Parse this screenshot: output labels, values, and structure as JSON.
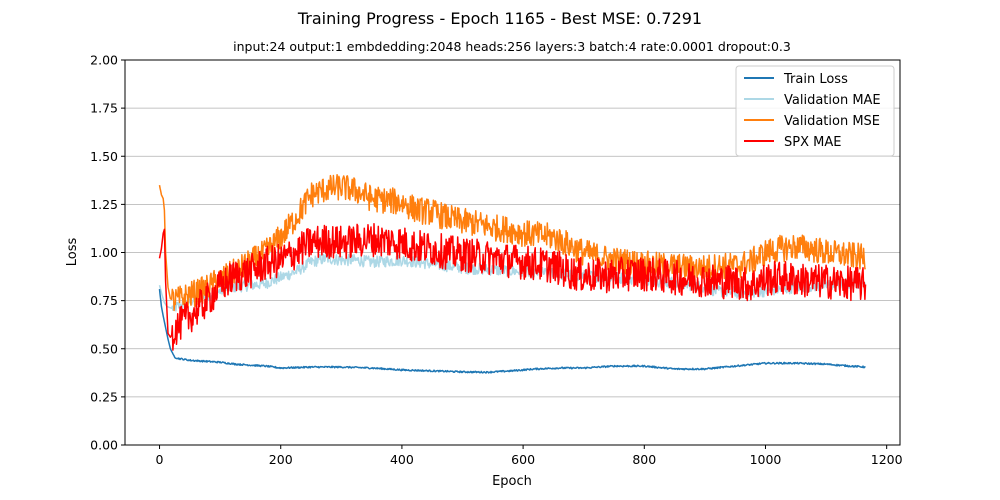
{
  "chart_data": {
    "type": "line",
    "title": "Training Progress - Epoch 1165 - Best MSE: 0.7291",
    "subtitle": "input:24 output:1 embdedding:2048 heads:256 layers:3 batch:4 rate:0.0001 dropout:0.3",
    "xlabel": "Epoch",
    "ylabel": "Loss",
    "xlim": [
      -57,
      1222
    ],
    "ylim": [
      0,
      2
    ],
    "xticks": [
      0,
      200,
      400,
      600,
      800,
      1000,
      1200
    ],
    "yticks": [
      0.0,
      0.25,
      0.5,
      0.75,
      1.0,
      1.25,
      1.5,
      1.75,
      2.0
    ],
    "ytick_labels": [
      "0.00",
      "0.25",
      "0.50",
      "0.75",
      "1.00",
      "1.25",
      "1.50",
      "1.75",
      "2.00"
    ],
    "grid": "y-axis horizontal lines",
    "legend_position": "top-right",
    "series": [
      {
        "name": "Train Loss",
        "color": "#1f77b4",
        "points": [
          [
            0,
            0.81
          ],
          [
            3,
            0.72
          ],
          [
            6,
            0.67
          ],
          [
            10,
            0.61
          ],
          [
            14,
            0.55
          ],
          [
            18,
            0.5
          ],
          [
            22,
            0.47
          ],
          [
            26,
            0.455
          ],
          [
            30,
            0.45
          ],
          [
            40,
            0.445
          ],
          [
            50,
            0.44
          ],
          [
            75,
            0.435
          ],
          [
            100,
            0.43
          ],
          [
            125,
            0.42
          ],
          [
            150,
            0.415
          ],
          [
            175,
            0.41
          ],
          [
            200,
            0.4
          ],
          [
            250,
            0.405
          ],
          [
            300,
            0.405
          ],
          [
            350,
            0.4
          ],
          [
            400,
            0.39
          ],
          [
            450,
            0.385
          ],
          [
            500,
            0.38
          ],
          [
            540,
            0.378
          ],
          [
            580,
            0.385
          ],
          [
            620,
            0.395
          ],
          [
            660,
            0.4
          ],
          [
            700,
            0.4
          ],
          [
            750,
            0.41
          ],
          [
            800,
            0.41
          ],
          [
            850,
            0.395
          ],
          [
            900,
            0.395
          ],
          [
            950,
            0.41
          ],
          [
            1000,
            0.425
          ],
          [
            1050,
            0.425
          ],
          [
            1100,
            0.42
          ],
          [
            1140,
            0.41
          ],
          [
            1165,
            0.405
          ]
        ]
      },
      {
        "name": "Validation MAE",
        "color": "#add8e6",
        "points": [
          [
            0,
            0.83
          ],
          [
            4,
            0.78
          ],
          [
            8,
            0.74
          ],
          [
            12,
            0.72
          ],
          [
            20,
            0.71
          ],
          [
            40,
            0.73
          ],
          [
            60,
            0.76
          ],
          [
            80,
            0.78
          ],
          [
            100,
            0.8
          ],
          [
            120,
            0.82
          ],
          [
            150,
            0.83
          ],
          [
            175,
            0.84
          ],
          [
            200,
            0.87
          ],
          [
            225,
            0.9
          ],
          [
            250,
            0.95
          ],
          [
            275,
            0.97
          ],
          [
            300,
            0.96
          ],
          [
            325,
            0.96
          ],
          [
            350,
            0.95
          ],
          [
            400,
            0.96
          ],
          [
            450,
            0.94
          ],
          [
            500,
            0.92
          ],
          [
            550,
            0.91
          ],
          [
            600,
            0.9
          ],
          [
            650,
            0.89
          ],
          [
            700,
            0.88
          ],
          [
            750,
            0.87
          ],
          [
            800,
            0.86
          ],
          [
            850,
            0.84
          ],
          [
            880,
            0.83
          ],
          [
            920,
            0.8
          ],
          [
            960,
            0.79
          ],
          [
            1000,
            0.8
          ],
          [
            1050,
            0.82
          ],
          [
            1100,
            0.83
          ],
          [
            1165,
            0.84
          ]
        ]
      },
      {
        "name": "Validation MSE",
        "color": "#ff7f0e",
        "points": [
          [
            0,
            1.35
          ],
          [
            3,
            1.3
          ],
          [
            6,
            1.28
          ],
          [
            8,
            1.22
          ],
          [
            10,
            1.0
          ],
          [
            14,
            0.82
          ],
          [
            18,
            0.76
          ],
          [
            25,
            0.75
          ],
          [
            35,
            0.76
          ],
          [
            50,
            0.78
          ],
          [
            75,
            0.81
          ],
          [
            100,
            0.86
          ],
          [
            125,
            0.9
          ],
          [
            150,
            0.95
          ],
          [
            175,
            1.0
          ],
          [
            200,
            1.08
          ],
          [
            225,
            1.18
          ],
          [
            250,
            1.3
          ],
          [
            275,
            1.33
          ],
          [
            300,
            1.34
          ],
          [
            325,
            1.32
          ],
          [
            350,
            1.28
          ],
          [
            375,
            1.27
          ],
          [
            400,
            1.26
          ],
          [
            425,
            1.22
          ],
          [
            450,
            1.21
          ],
          [
            475,
            1.18
          ],
          [
            500,
            1.16
          ],
          [
            525,
            1.15
          ],
          [
            550,
            1.13
          ],
          [
            575,
            1.12
          ],
          [
            600,
            1.1
          ],
          [
            625,
            1.09
          ],
          [
            650,
            1.08
          ],
          [
            675,
            1.04
          ],
          [
            700,
            1.0
          ],
          [
            725,
            0.98
          ],
          [
            750,
            0.96
          ],
          [
            775,
            0.95
          ],
          [
            800,
            0.94
          ],
          [
            825,
            0.93
          ],
          [
            850,
            0.93
          ],
          [
            875,
            0.92
          ],
          [
            900,
            0.92
          ],
          [
            925,
            0.93
          ],
          [
            950,
            0.93
          ],
          [
            975,
            0.95
          ],
          [
            1000,
            1.0
          ],
          [
            1025,
            1.02
          ],
          [
            1050,
            1.03
          ],
          [
            1075,
            1.02
          ],
          [
            1100,
            1.0
          ],
          [
            1125,
            0.99
          ],
          [
            1150,
            0.98
          ],
          [
            1165,
            0.97
          ]
        ]
      },
      {
        "name": "SPX MAE",
        "color": "#ff0000",
        "points": [
          [
            0,
            0.97
          ],
          [
            3,
            1.02
          ],
          [
            6,
            1.1
          ],
          [
            8,
            1.12
          ],
          [
            10,
            0.85
          ],
          [
            14,
            0.58
          ],
          [
            18,
            0.56
          ],
          [
            25,
            0.6
          ],
          [
            35,
            0.63
          ],
          [
            50,
            0.67
          ],
          [
            75,
            0.74
          ],
          [
            100,
            0.82
          ],
          [
            125,
            0.88
          ],
          [
            150,
            0.9
          ],
          [
            175,
            0.94
          ],
          [
            200,
            0.96
          ],
          [
            225,
            1.0
          ],
          [
            250,
            1.05
          ],
          [
            275,
            1.06
          ],
          [
            300,
            1.05
          ],
          [
            325,
            1.06
          ],
          [
            350,
            1.07
          ],
          [
            375,
            1.06
          ],
          [
            400,
            1.05
          ],
          [
            425,
            1.03
          ],
          [
            450,
            1.02
          ],
          [
            475,
            1.0
          ],
          [
            500,
            0.99
          ],
          [
            525,
            0.98
          ],
          [
            550,
            0.97
          ],
          [
            575,
            0.96
          ],
          [
            600,
            0.95
          ],
          [
            625,
            0.94
          ],
          [
            650,
            0.93
          ],
          [
            675,
            0.9
          ],
          [
            700,
            0.88
          ],
          [
            725,
            0.88
          ],
          [
            750,
            0.88
          ],
          [
            775,
            0.89
          ],
          [
            800,
            0.89
          ],
          [
            825,
            0.88
          ],
          [
            850,
            0.87
          ],
          [
            875,
            0.86
          ],
          [
            900,
            0.86
          ],
          [
            925,
            0.85
          ],
          [
            950,
            0.85
          ],
          [
            975,
            0.83
          ],
          [
            1000,
            0.86
          ],
          [
            1025,
            0.87
          ],
          [
            1050,
            0.86
          ],
          [
            1075,
            0.85
          ],
          [
            1100,
            0.85
          ],
          [
            1125,
            0.84
          ],
          [
            1150,
            0.84
          ],
          [
            1165,
            0.83
          ]
        ]
      }
    ]
  }
}
